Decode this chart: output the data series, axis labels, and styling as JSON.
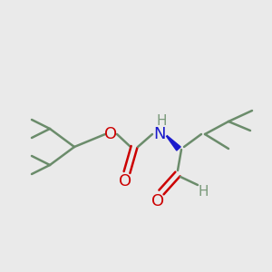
{
  "bg_color": "#eaeaea",
  "bond_color": "#6b8c6b",
  "o_color": "#cc0000",
  "n_color": "#1a1acc",
  "h_color": "#7a9a7a",
  "lw": 1.8,
  "figsize": [
    3.0,
    3.0
  ],
  "dpi": 100,
  "xlim": [
    0,
    300
  ],
  "ylim": [
    0,
    300
  ]
}
